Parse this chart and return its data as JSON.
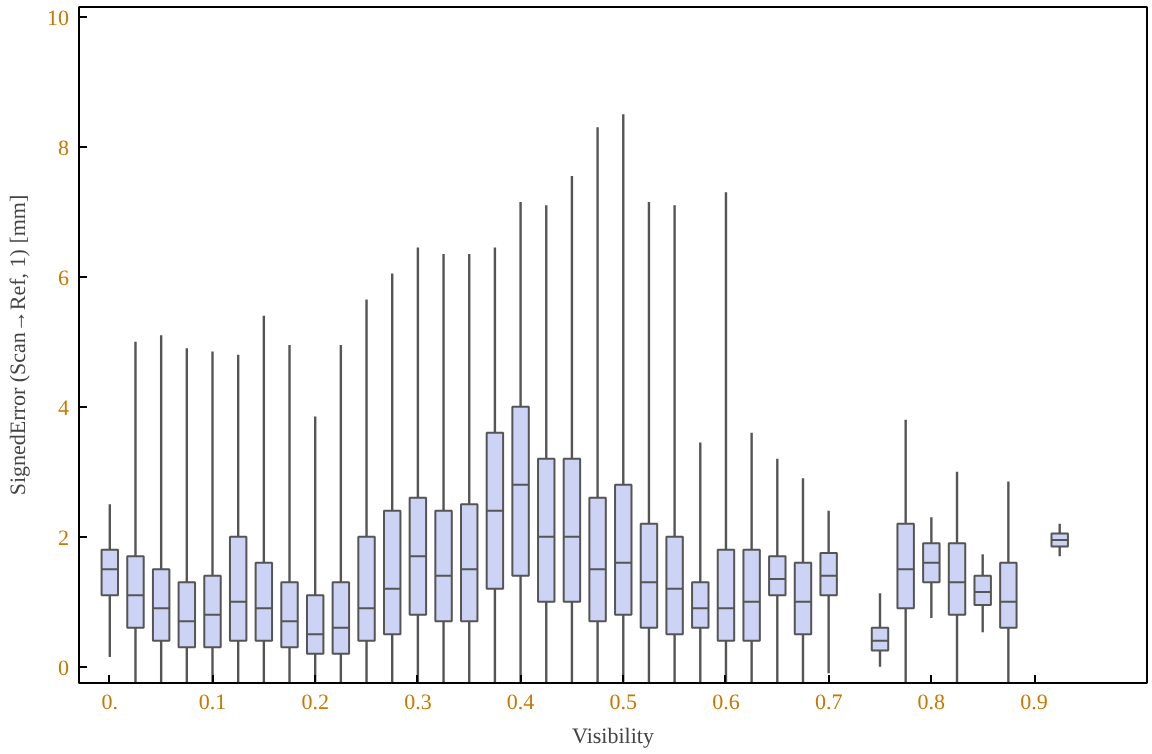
{
  "chart_data": {
    "type": "box",
    "xlabel": "Visibility",
    "ylabel": "SignedError (Scan→Ref, 1) [mm]",
    "x": [
      0,
      0.025,
      0.05,
      0.075,
      0.1,
      0.125,
      0.15,
      0.175,
      0.2,
      0.225,
      0.25,
      0.275,
      0.3,
      0.325,
      0.35,
      0.375,
      0.4,
      0.425,
      0.45,
      0.475,
      0.5,
      0.525,
      0.55,
      0.575,
      0.6,
      0.625,
      0.65,
      0.675,
      0.7,
      0.75,
      0.775,
      0.8,
      0.825,
      0.85,
      0.875,
      0.925
    ],
    "boxes": [
      {
        "low": 0.15,
        "q1": 1.1,
        "median": 1.5,
        "q3": 1.8,
        "high": 2.5
      },
      {
        "low": -0.25,
        "q1": 0.6,
        "median": 1.1,
        "q3": 1.7,
        "high": 5.0
      },
      {
        "low": -0.25,
        "q1": 0.4,
        "median": 0.9,
        "q3": 1.5,
        "high": 5.1
      },
      {
        "low": -0.25,
        "q1": 0.3,
        "median": 0.7,
        "q3": 1.3,
        "high": 4.9
      },
      {
        "low": -0.25,
        "q1": 0.3,
        "median": 0.8,
        "q3": 1.4,
        "high": 4.85
      },
      {
        "low": -0.25,
        "q1": 0.4,
        "median": 1.0,
        "q3": 2.0,
        "high": 4.8
      },
      {
        "low": -0.25,
        "q1": 0.4,
        "median": 0.9,
        "q3": 1.6,
        "high": 5.4
      },
      {
        "low": -0.25,
        "q1": 0.3,
        "median": 0.7,
        "q3": 1.3,
        "high": 4.95
      },
      {
        "low": -0.25,
        "q1": 0.2,
        "median": 0.5,
        "q3": 1.1,
        "high": 3.85
      },
      {
        "low": -0.25,
        "q1": 0.2,
        "median": 0.6,
        "q3": 1.3,
        "high": 4.95
      },
      {
        "low": -0.25,
        "q1": 0.4,
        "median": 0.9,
        "q3": 2.0,
        "high": 5.65
      },
      {
        "low": -0.25,
        "q1": 0.5,
        "median": 1.2,
        "q3": 2.4,
        "high": 6.05
      },
      {
        "low": -0.25,
        "q1": 0.8,
        "median": 1.7,
        "q3": 2.6,
        "high": 6.45
      },
      {
        "low": -0.25,
        "q1": 0.7,
        "median": 1.4,
        "q3": 2.4,
        "high": 6.35
      },
      {
        "low": -0.25,
        "q1": 0.7,
        "median": 1.5,
        "q3": 2.5,
        "high": 6.35
      },
      {
        "low": -0.25,
        "q1": 1.2,
        "median": 2.4,
        "q3": 3.6,
        "high": 6.45
      },
      {
        "low": -0.25,
        "q1": 1.4,
        "median": 2.8,
        "q3": 4.0,
        "high": 7.15
      },
      {
        "low": -0.25,
        "q1": 1.0,
        "median": 2.0,
        "q3": 3.2,
        "high": 7.1
      },
      {
        "low": -0.25,
        "q1": 1.0,
        "median": 2.0,
        "q3": 3.2,
        "high": 7.55
      },
      {
        "low": -0.25,
        "q1": 0.7,
        "median": 1.5,
        "q3": 2.6,
        "high": 8.3
      },
      {
        "low": -0.25,
        "q1": 0.8,
        "median": 1.6,
        "q3": 2.8,
        "high": 8.5
      },
      {
        "low": -0.25,
        "q1": 0.6,
        "median": 1.3,
        "q3": 2.2,
        "high": 7.15
      },
      {
        "low": -0.25,
        "q1": 0.5,
        "median": 1.2,
        "q3": 2.0,
        "high": 7.1
      },
      {
        "low": -0.25,
        "q1": 0.6,
        "median": 0.9,
        "q3": 1.3,
        "high": 3.45
      },
      {
        "low": -0.25,
        "q1": 0.4,
        "median": 0.9,
        "q3": 1.8,
        "high": 7.3
      },
      {
        "low": -0.25,
        "q1": 0.4,
        "median": 1.0,
        "q3": 1.8,
        "high": 3.6
      },
      {
        "low": -0.25,
        "q1": 1.1,
        "median": 1.35,
        "q3": 1.7,
        "high": 3.2
      },
      {
        "low": -0.25,
        "q1": 0.5,
        "median": 1.0,
        "q3": 1.6,
        "high": 2.9
      },
      {
        "low": -0.1,
        "q1": 1.1,
        "median": 1.4,
        "q3": 1.75,
        "high": 2.4
      },
      {
        "low": 0,
        "q1": 0.25,
        "median": 0.4,
        "q3": 0.6,
        "high": 1.13
      },
      {
        "low": -0.25,
        "q1": 0.9,
        "median": 1.5,
        "q3": 2.2,
        "high": 3.8
      },
      {
        "low": 0.75,
        "q1": 1.3,
        "median": 1.6,
        "q3": 1.9,
        "high": 2.3
      },
      {
        "low": -0.25,
        "q1": 0.8,
        "median": 1.3,
        "q3": 1.9,
        "high": 3.0
      },
      {
        "low": 0.53,
        "q1": 0.95,
        "median": 1.15,
        "q3": 1.4,
        "high": 1.73
      },
      {
        "low": -0.25,
        "q1": 0.6,
        "median": 1.0,
        "q3": 1.6,
        "high": 2.85
      },
      {
        "low": 1.7,
        "q1": 1.85,
        "median": 1.95,
        "q3": 2.05,
        "high": 2.2
      }
    ],
    "color": "#cdd3f5",
    "xlim": [
      -0.03,
      1.01
    ],
    "ylim": [
      -0.25,
      10.15
    ],
    "xticks": [
      {
        "value": 0,
        "label": "0."
      },
      0.1,
      0.2,
      0.3,
      0.4,
      0.5,
      0.6,
      0.7,
      0.8,
      0.9
    ],
    "yticks": [
      0,
      2,
      4,
      6,
      8,
      10
    ],
    "grid": false
  }
}
